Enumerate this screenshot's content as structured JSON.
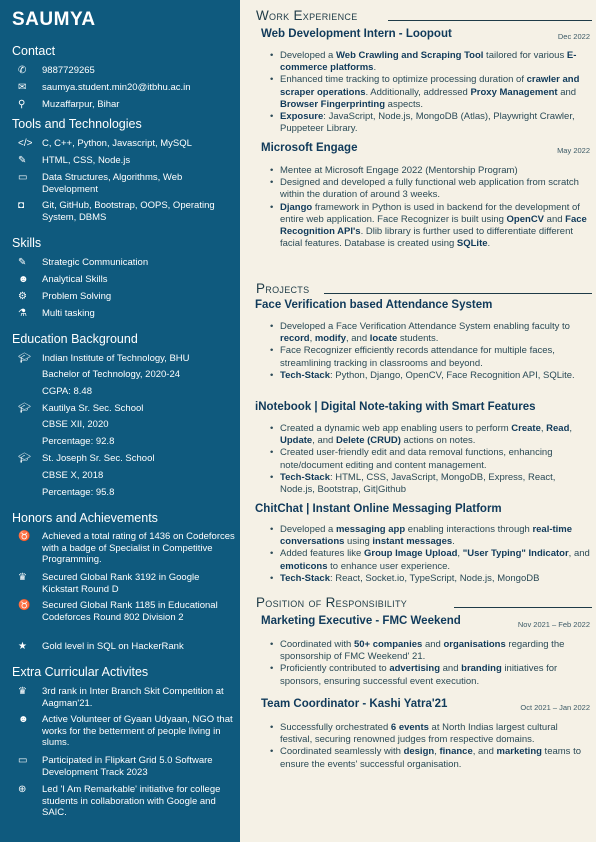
{
  "name": "SAUMYA",
  "contact": {
    "heading": "Contact",
    "phone": "9887729265",
    "email": "saumya.student.min20@itbhu.ac.in",
    "location": "Muzaffarpur, Bihar"
  },
  "tools": {
    "heading": "Tools and Technologies",
    "items": [
      {
        "icon": "code-icon",
        "glyph": "</>",
        "text": "C, C++, Python, Javascript, MySQL"
      },
      {
        "icon": "pen-icon",
        "glyph": "✎",
        "text": "HTML, CSS, Node.js"
      },
      {
        "icon": "laptop-icon",
        "glyph": "▭",
        "text": "Data Structures, Algorithms, Web Development"
      },
      {
        "icon": "briefcase-icon",
        "glyph": "◘",
        "text": "Git, GitHub, Bootstrap, OOPS, Operating System, DBMS"
      }
    ]
  },
  "skills": {
    "heading": "Skills",
    "items": [
      {
        "icon": "pencil-icon",
        "glyph": "✎",
        "text": "Strategic Communication"
      },
      {
        "icon": "users-icon",
        "glyph": "☻",
        "text": "Analytical Skills"
      },
      {
        "icon": "gears-icon",
        "glyph": "⚙",
        "text": "Problem Solving"
      },
      {
        "icon": "flask-icon",
        "glyph": "⚗",
        "text": "Multi tasking"
      }
    ]
  },
  "education": {
    "heading": "Education Background",
    "items": [
      {
        "lines": [
          "Indian Institute of Technology, BHU",
          "Bachelor of Technology, 2020-24",
          "CGPA: 8.48"
        ]
      },
      {
        "lines": [
          "Kautilya Sr. Sec. School",
          "CBSE XII, 2020",
          "Percentage: 92.8"
        ]
      },
      {
        "lines": [
          "St. Joseph Sr. Sec. School",
          "CBSE X, 2018",
          "Percentage: 95.8"
        ]
      }
    ]
  },
  "honors": {
    "heading": "Honors and Achievements",
    "items": [
      {
        "icon": "medal-icon",
        "glyph": "♉",
        "text": "Achieved a total rating of 1436 on Codeforces with a badge of Specialist in Competitive Programming."
      },
      {
        "icon": "trophy-icon",
        "glyph": "♛",
        "text": "Secured Global Rank 3192 in Google Kickstart Round D"
      },
      {
        "icon": "medal-icon",
        "glyph": "♉",
        "text": "Secured Global Rank 1185 in Educational Codeforces Round 802 Division 2"
      },
      {
        "icon": "star-icon",
        "glyph": "★",
        "text": "Gold level in SQL on HackerRank"
      }
    ]
  },
  "extra": {
    "heading": "Extra Curricular Activites",
    "items": [
      {
        "icon": "trophy-icon",
        "glyph": "♛",
        "text": "3rd rank in Inter Branch Skit Competition at Aagman'21."
      },
      {
        "icon": "users-icon",
        "glyph": "☻",
        "text": "Active Volunteer of Gyaan Udyaan, NGO that works for the betterment of people living in slums."
      },
      {
        "icon": "laptop-icon",
        "glyph": "▭",
        "text": "Participated in Flipkart Grid 5.0 Software Development Track 2023"
      },
      {
        "icon": "globe-icon",
        "glyph": "⊕",
        "text": "Led 'I Am Remarkable' initiative for college students in collaboration with Google and SAIC."
      }
    ]
  },
  "work": {
    "heading": "Work Experience",
    "jobs": [
      {
        "title": "Web Development Intern - Loopout",
        "date": "Dec 2022",
        "bullets": [
          "Developed a <b>Web Crawling and Scraping Tool</b> tailored for various <b>E-commerce platforms</b>.",
          "Enhanced time tracking to optimize processing duration of <b>crawler and scraper operations</b>. Additionally, addressed <b>Proxy Management</b> and <b>Browser Fingerprinting</b> aspects.",
          "<b>Exposure</b>: JavaScript, Node.js, MongoDB (Atlas), Playwright Crawler, Puppeteer Library."
        ]
      },
      {
        "title": "Microsoft Engage",
        "date": "May 2022",
        "bullets": [
          "Mentee at Microsoft Engage 2022 (Mentorship Program)",
          "Designed and developed a fully functional web application from scratch within the duration of around 3 weeks.",
          "<b>Django</b> framework in Python is used in backend for the development of entire web application. Face Recognizer is built using <b>OpenCV</b> and <b>Face Recognition API's</b>. Dlib library is further used to differentiate different facial features. Database is created using <b>SQLite</b>."
        ]
      }
    ]
  },
  "projects": {
    "heading": "Projects",
    "items": [
      {
        "title": "Face Verification based Attendance System",
        "bullets": [
          "Developed a Face Verification Attendance System enabling faculty to <b>record</b>, <b>modify</b>, and <b>locate</b> students.",
          "Face Recognizer efficiently records attendance for multiple faces, streamlining tracking in classrooms and beyond.",
          "<b>Tech-Stack</b>: Python, Django, OpenCV, Face Recognition API, SQLite."
        ]
      },
      {
        "title": "iNotebook | Digital Note-taking with Smart Features",
        "bullets": [
          "Created a dynamic web app enabling users to perform <b>Create</b>, <b>Read</b>, <b>Update</b>, and <b>Delete (CRUD)</b> actions on notes.",
          "Created user-friendly edit and data removal functions, enhancing note/document editing and content management.",
          "<b>Tech-Stack</b>: HTML, CSS, JavaScript, MongoDB, Express, React, Node.js, Bootstrap, Git|Github"
        ]
      },
      {
        "title": "ChitChat | Instant Online Messaging Platform",
        "bullets": [
          "Developed a <b>messaging app</b> enabling interactions through <b>real-time conversations</b> using <b>instant messages</b>.",
          "Added features like <b>Group Image Upload</b>, <b>\"User Typing\" Indicator</b>, and <b>emoticons</b> to enhance user experience.",
          "<b>Tech-Stack</b>: React, Socket.io, TypeScript, Node.js, MongoDB"
        ]
      }
    ]
  },
  "por": {
    "heading": "Position of Responsibility",
    "items": [
      {
        "title": "Marketing Executive - FMC Weekend",
        "date": "Nov 2021 – Feb 2022",
        "bullets": [
          "Coordinated with <b>50+ companies</b> and <b>organisations</b> regarding the sponsorship of FMC Weekend' 21.",
          "Proficiently contributed to <b>advertising</b> and <b>branding</b> initiatives for sponsors, ensuring successful event execution."
        ]
      },
      {
        "title": "Team Coordinator - Kashi Yatra'21",
        "date": "Oct 2021 – Jan 2022",
        "bullets": [
          "Successfully orchestrated <b>6 events</b> at North Indias largest cultural festival, securing renowned judges from respective domains.",
          "Coordinated seamlessly with <b>design</b>, <b>finance</b>, and <b>marketing</b> teams to ensure the events' successful organisation."
        ]
      }
    ]
  }
}
